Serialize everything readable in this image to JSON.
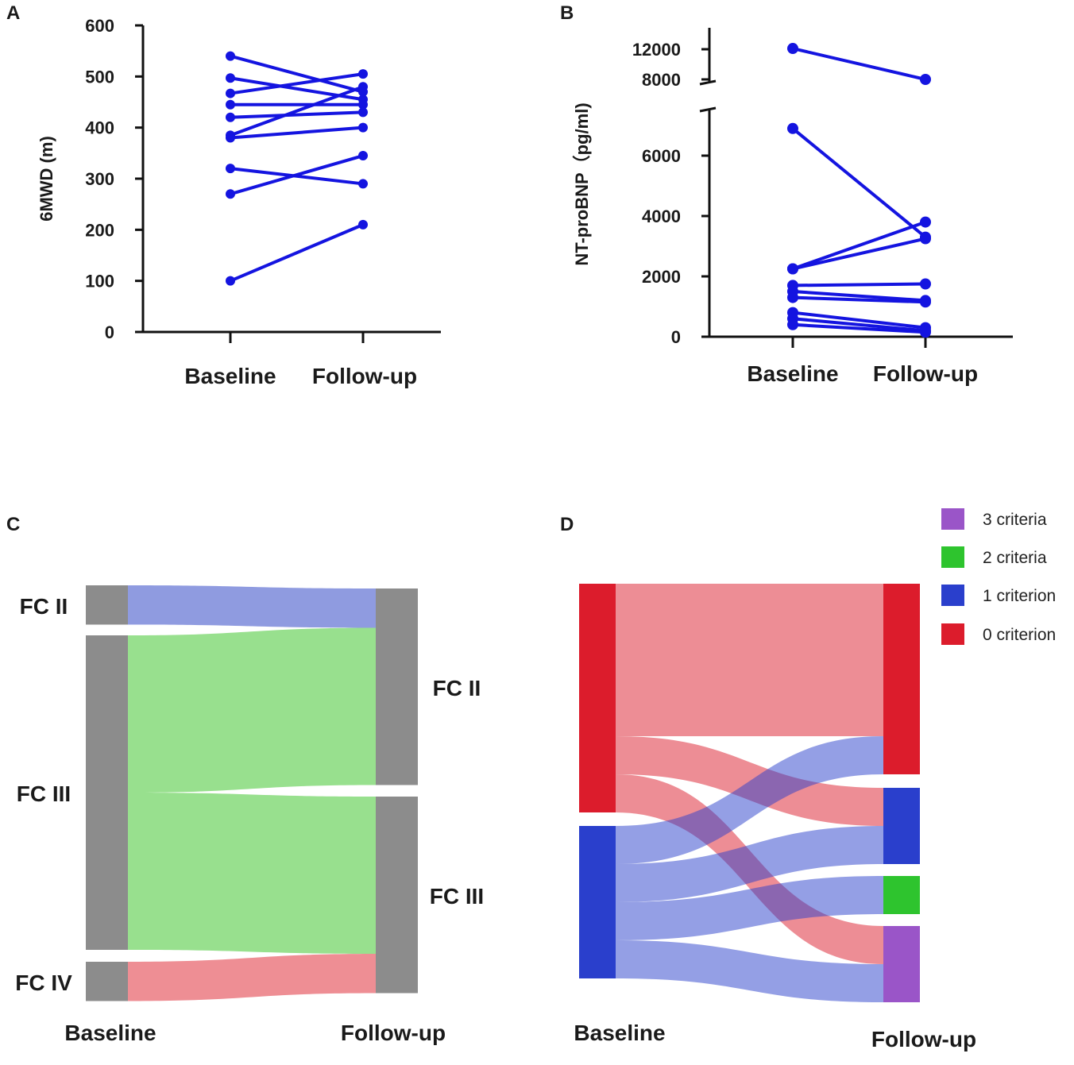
{
  "chart_data": [
    {
      "panel": "A",
      "type": "line",
      "title": "",
      "ylabel": "6MWD (m)",
      "ylim": [
        0,
        600
      ],
      "yticks": [
        0,
        100,
        200,
        300,
        400,
        500,
        600
      ],
      "categories": [
        "Baseline",
        "Follow-up"
      ],
      "series_color": "#1414e0",
      "pairs": [
        [
          540,
          470
        ],
        [
          497,
          455
        ],
        [
          467,
          505
        ],
        [
          445,
          445
        ],
        [
          420,
          430
        ],
        [
          385,
          480
        ],
        [
          380,
          400
        ],
        [
          320,
          290
        ],
        [
          270,
          345
        ],
        [
          100,
          210
        ]
      ]
    },
    {
      "panel": "B",
      "type": "line",
      "ylabel": "NT-proBNP（pg/ml)",
      "ylim": [
        0,
        12000
      ],
      "axis_break": [
        7500,
        8000
      ],
      "yticks": [
        0,
        2000,
        4000,
        6000,
        8000,
        12000
      ],
      "categories": [
        "Baseline",
        "Follow-up"
      ],
      "series_color": "#1414e0",
      "pairs": [
        [
          12100,
          8000
        ],
        [
          6900,
          3300
        ],
        [
          2250,
          3800
        ],
        [
          2250,
          3250
        ],
        [
          1700,
          1750
        ],
        [
          1500,
          1200
        ],
        [
          1300,
          1150
        ],
        [
          800,
          300
        ],
        [
          600,
          200
        ],
        [
          400,
          150
        ]
      ]
    },
    {
      "panel": "C",
      "type": "sankey",
      "xlabels": [
        "Baseline",
        "Follow-up"
      ],
      "left_nodes": [
        {
          "label": "FC II",
          "value": 1
        },
        {
          "label": "FC III",
          "value": 8
        },
        {
          "label": "FC IV",
          "value": 1
        }
      ],
      "right_nodes": [
        {
          "label": "FC II",
          "value": 5
        },
        {
          "label": "FC III",
          "value": 5
        }
      ],
      "flows": [
        {
          "from": 0,
          "to": 0,
          "value": 1,
          "color": "#8f9be0"
        },
        {
          "from": 1,
          "to": 0,
          "value": 4,
          "color": "#98e08e"
        },
        {
          "from": 1,
          "to": 1,
          "value": 4,
          "color": "#98e08e"
        },
        {
          "from": 2,
          "to": 1,
          "value": 1,
          "color": "#ee8e94"
        }
      ],
      "node_color": "#8c8c8c"
    },
    {
      "panel": "D",
      "type": "sankey",
      "xlabels": [
        "Baseline",
        "Follow-up"
      ],
      "legend": [
        {
          "label": "3 criteria",
          "color": "#9a55c8"
        },
        {
          "label": "2 criteria",
          "color": "#2ec42e"
        },
        {
          "label": "1 criterion",
          "color": "#2a3fcc"
        },
        {
          "label": "0 criterion",
          "color": "#dc1c2c"
        }
      ],
      "left_nodes": [
        {
          "label": "0 criterion",
          "value": 6,
          "color": "#dc1c2c"
        },
        {
          "label": "1 criterion",
          "value": 4,
          "color": "#2a3fcc"
        }
      ],
      "right_nodes": [
        {
          "label": "0 criterion",
          "value": 5,
          "color": "#dc1c2c"
        },
        {
          "label": "1 criterion",
          "value": 2,
          "color": "#2a3fcc"
        },
        {
          "label": "2 criteria",
          "value": 1,
          "color": "#2ec42e"
        },
        {
          "label": "3 criteria",
          "value": 2,
          "color": "#9a55c8"
        }
      ],
      "flows": [
        {
          "from": 0,
          "to": 0,
          "value": 4
        },
        {
          "from": 0,
          "to": 1,
          "value": 1
        },
        {
          "from": 0,
          "to": 3,
          "value": 1
        },
        {
          "from": 1,
          "to": 0,
          "value": 1
        },
        {
          "from": 1,
          "to": 1,
          "value": 1
        },
        {
          "from": 1,
          "to": 2,
          "value": 1
        },
        {
          "from": 1,
          "to": 3,
          "value": 1
        }
      ]
    }
  ]
}
